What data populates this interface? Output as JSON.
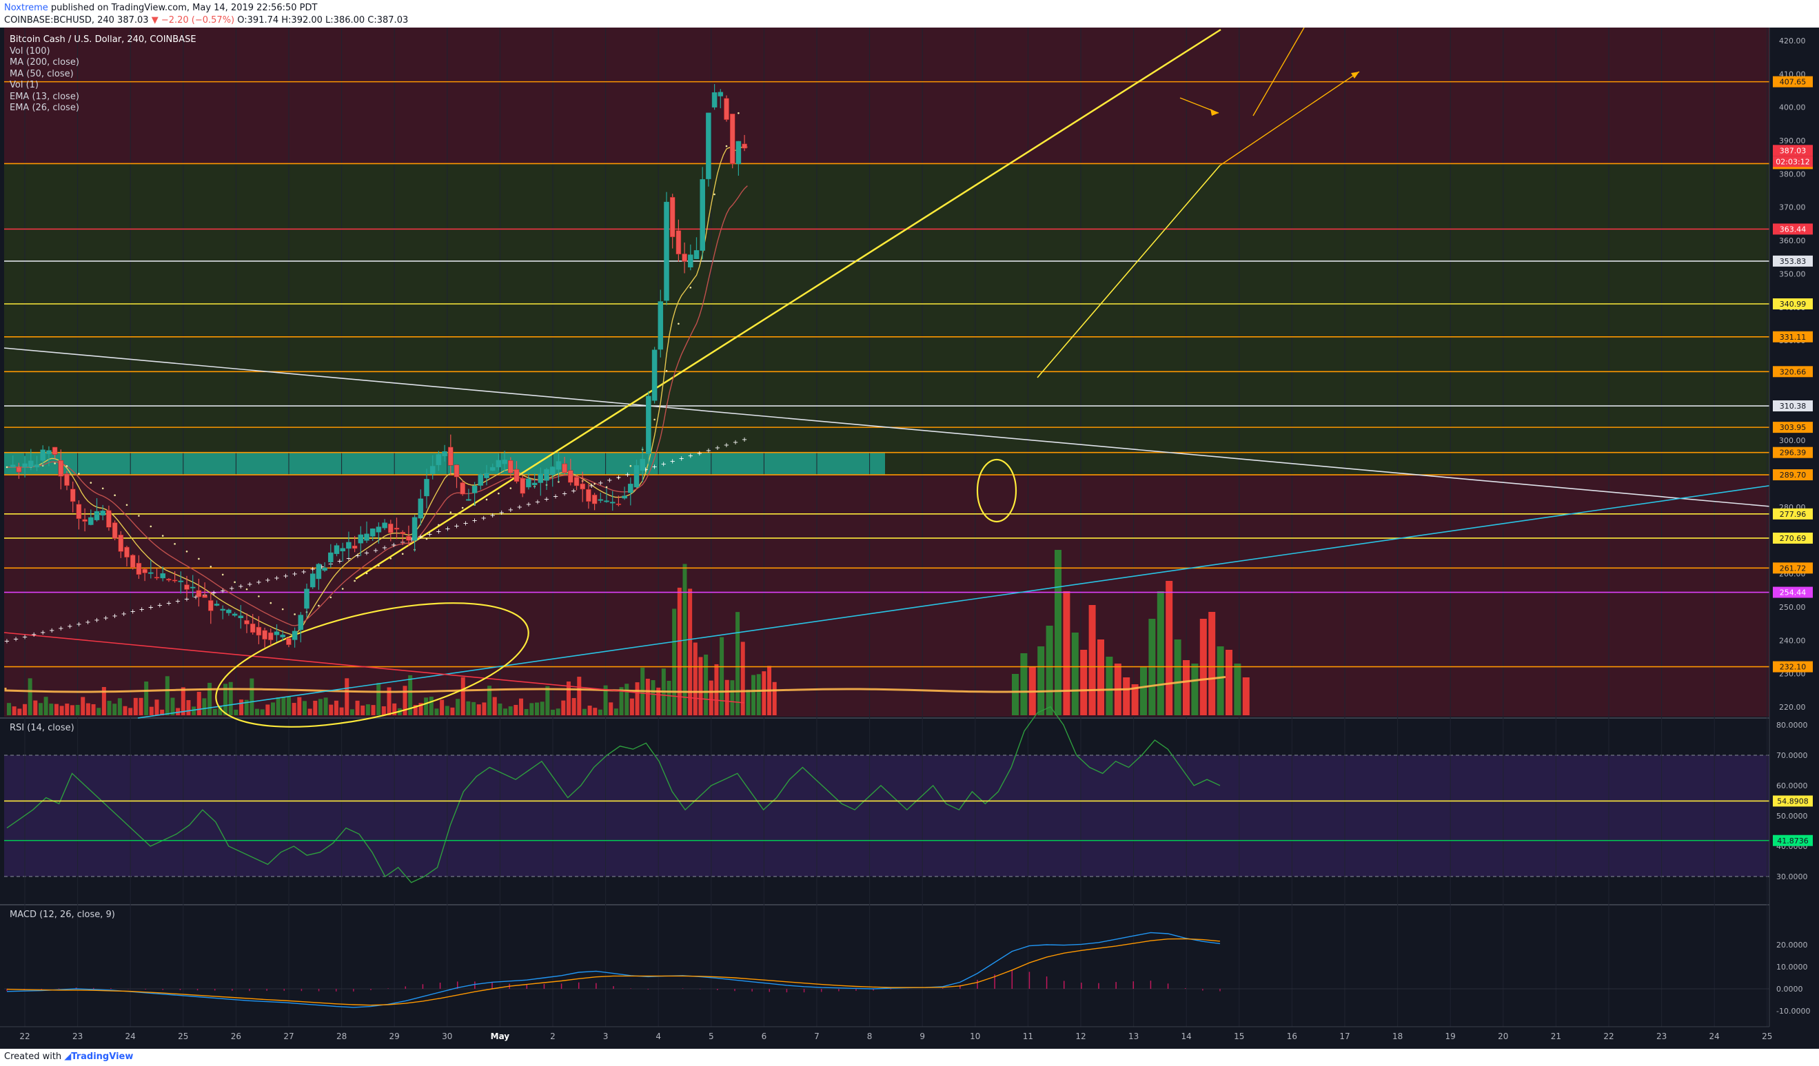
{
  "header": {
    "author": "Noxtreme",
    "published": " published on TradingView.com, May 14, 2019 22:56:50 PDT",
    "symbol_line": "COINBASE:BCHUSD, 240 387.03",
    "change": "▼ −2.20 (−0.57%)",
    "ohlc": "O:391.74 H:392.00 L:386.00 C:387.03"
  },
  "legend": {
    "title": "Bitcoin Cash / U.S. Dollar, 240, COINBASE",
    "items": [
      "Vol (100)",
      "MA (200, close)",
      "MA (50, close)",
      "Vol (1)",
      "EMA (13, close)",
      "EMA (26, close)"
    ]
  },
  "panes": {
    "rsi_label": "RSI (14, close)",
    "macd_label": "MACD (12, 26, close, 9)"
  },
  "colors": {
    "background": "#131722",
    "zone_red": "#3b1624",
    "zone_green": "#222e1b",
    "zone_teal": "#1e9e8a",
    "up": "#26a69a",
    "down": "#ef5350",
    "yellow": "#ffeb3b",
    "orange": "#ff9800",
    "red": "#f23645",
    "magenta": "#e040fb",
    "cyan": "#29c5e6",
    "white": "#e0e3eb",
    "rsi_band": "#2a1e4a"
  },
  "chart_data": {
    "type": "candlestick",
    "symbol": "COINBASE:BCHUSD",
    "interval": "240",
    "price_ticks": [
      "420.00",
      "410.00",
      "400.00",
      "390.00",
      "380.00",
      "370.00",
      "360.00",
      "350.00",
      "340.00",
      "330.00",
      "320.00",
      "310.00",
      "300.00",
      "290.00",
      "280.00",
      "270.00",
      "260.00",
      "250.00",
      "240.00",
      "230.00",
      "220.00"
    ],
    "price_levels": [
      {
        "value": 407.65,
        "label": "407.65",
        "color": "orange"
      },
      {
        "value": 387.03,
        "label": "387.03",
        "color": "red",
        "current": true
      },
      {
        "value": 383.09,
        "label": "383.09",
        "color": "orange"
      },
      {
        "value": 363.44,
        "label": "363.44",
        "color": "red"
      },
      {
        "value": 353.83,
        "label": "353.83",
        "color": "white"
      },
      {
        "value": 340.99,
        "label": "340.99",
        "color": "yellow"
      },
      {
        "value": 331.11,
        "label": "331.11",
        "color": "orange"
      },
      {
        "value": 320.66,
        "label": "320.66",
        "color": "orange"
      },
      {
        "value": 310.38,
        "label": "310.38",
        "color": "white"
      },
      {
        "value": 303.95,
        "label": "303.95",
        "color": "orange"
      },
      {
        "value": 296.39,
        "label": "296.39",
        "color": "orange"
      },
      {
        "value": 289.7,
        "label": "289.70",
        "color": "orange"
      },
      {
        "value": 277.96,
        "label": "277.96",
        "color": "yellow"
      },
      {
        "value": 270.69,
        "label": "270.69",
        "color": "yellow"
      },
      {
        "value": 261.72,
        "label": "261.72",
        "color": "orange"
      },
      {
        "value": 254.44,
        "label": "254.44",
        "color": "magenta"
      },
      {
        "value": 232.1,
        "label": "232.10",
        "color": "orange"
      }
    ],
    "countdown": "02:03:12",
    "rsi": {
      "ticks": [
        "80.0000",
        "70.0000",
        "60.0000",
        "50.0000",
        "40.0000",
        "30.0000"
      ],
      "levels": [
        {
          "value": 54.8908,
          "label": "54.8908",
          "color": "yellow"
        },
        {
          "value": 41.8736,
          "label": "41.8736",
          "color": "green"
        }
      ],
      "values": [
        46,
        49,
        52,
        56,
        54,
        64,
        60,
        56,
        52,
        48,
        44,
        40,
        42,
        44,
        47,
        52,
        48,
        40,
        38,
        36,
        34,
        38,
        40,
        37,
        38,
        41,
        46,
        44,
        38,
        30,
        33,
        28,
        30,
        33,
        47,
        58,
        63,
        66,
        64,
        62,
        65,
        68,
        62,
        56,
        60,
        66,
        70,
        73,
        72,
        74,
        68,
        58,
        52,
        56,
        60,
        62,
        64,
        58,
        52,
        56,
        62,
        66,
        62,
        58,
        54,
        52,
        56,
        60,
        56,
        52,
        56,
        60,
        54,
        52,
        58,
        54,
        58,
        66,
        78,
        84,
        86,
        80,
        70,
        66,
        64,
        68,
        66,
        70,
        75,
        72,
        66,
        60,
        62,
        60
      ]
    },
    "macd": {
      "ticks": [
        "20.0000",
        "10.0000",
        "0.0000",
        "-10.0000"
      ],
      "macd": [
        -1.2,
        -1.0,
        -0.8,
        -0.4,
        0.0,
        -0.3,
        -0.6,
        -1.2,
        -1.8,
        -2.4,
        -3.0,
        -3.6,
        -4.2,
        -4.8,
        -5.4,
        -5.8,
        -6.2,
        -6.8,
        -7.4,
        -8.0,
        -8.4,
        -8.0,
        -7.0,
        -5.5,
        -3.5,
        -1.5,
        0.5,
        2.0,
        3.0,
        3.5,
        4.0,
        5.0,
        6.0,
        7.5,
        8.0,
        7.0,
        6.0,
        5.5,
        5.8,
        6.0,
        5.5,
        4.8,
        4.0,
        3.2,
        2.4,
        1.6,
        1.0,
        0.6,
        0.4,
        0.2,
        0.0,
        0.3,
        0.5,
        0.6,
        1.0,
        3.0,
        7.0,
        12.0,
        17.0,
        19.5,
        20.0,
        19.8,
        20.2,
        21.0,
        22.5,
        24.0,
        25.5,
        25.0,
        23.0,
        21.5,
        20.5
      ],
      "signal": [
        -0.2,
        -0.4,
        -0.5,
        -0.6,
        -0.6,
        -0.7,
        -0.9,
        -1.1,
        -1.5,
        -1.9,
        -2.4,
        -2.9,
        -3.4,
        -3.9,
        -4.4,
        -4.9,
        -5.3,
        -5.8,
        -6.3,
        -6.8,
        -7.2,
        -7.4,
        -7.2,
        -6.6,
        -5.6,
        -4.3,
        -2.8,
        -1.3,
        0.0,
        1.2,
        2.0,
        2.8,
        3.6,
        4.6,
        5.4,
        5.8,
        5.8,
        5.8,
        5.8,
        5.8,
        5.7,
        5.4,
        5.0,
        4.4,
        3.8,
        3.2,
        2.6,
        2.0,
        1.5,
        1.1,
        0.8,
        0.6,
        0.6,
        0.6,
        0.7,
        1.3,
        2.9,
        5.5,
        8.5,
        11.8,
        14.4,
        16.2,
        17.4,
        18.4,
        19.4,
        20.6,
        21.8,
        22.6,
        22.7,
        22.3,
        21.6
      ]
    },
    "date_labels": [
      "22",
      "23",
      "24",
      "25",
      "26",
      "27",
      "28",
      "29",
      "30",
      "May",
      "2",
      "3",
      "4",
      "5",
      "6",
      "7",
      "8",
      "9",
      "10",
      "11",
      "12",
      "13",
      "14",
      "15",
      "16",
      "17",
      "18",
      "19",
      "20",
      "21",
      "22",
      "23",
      "24",
      "25"
    ]
  },
  "footer": {
    "created": "Created with ",
    "brand": "TradingView"
  }
}
